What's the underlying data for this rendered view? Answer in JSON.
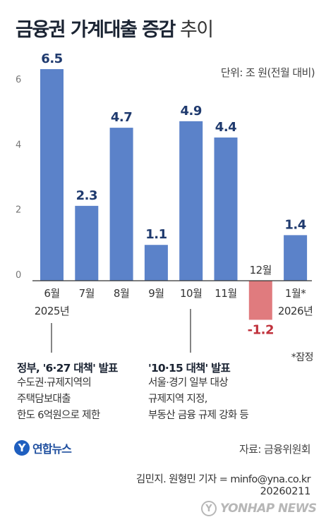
{
  "header": {
    "title_main": "금융권 가계대출 증감",
    "title_light": "추이",
    "unit": "단위: 조 원(전월 대비)"
  },
  "chart_data": {
    "type": "bar",
    "categories": [
      "6월",
      "7월",
      "8월",
      "9월",
      "10월",
      "11월",
      "12월",
      "1월*"
    ],
    "category_sublabels": [
      "2025년",
      "",
      "",
      "",
      "",
      "",
      "",
      "2026년"
    ],
    "values": [
      6.5,
      2.3,
      4.7,
      1.1,
      4.9,
      4.4,
      -1.2,
      1.4
    ],
    "value_labels": [
      "6.5",
      "2.3",
      "4.7",
      "1.1",
      "4.9",
      "4.4",
      "-1.2",
      "1.4"
    ],
    "title": "금융권 가계대출 증감 추이",
    "xlabel": "",
    "ylabel": "",
    "ylim": [
      -1.5,
      6.5
    ],
    "yticks": [
      "0",
      "2",
      "4",
      "6"
    ],
    "colors": {
      "positive": "#5b82c9",
      "negative": "#e07b7e",
      "value_label": "#1f3a6e",
      "negative_label": "#c0323c"
    },
    "grid": false,
    "legend": "none"
  },
  "notes": {
    "provisional": "*잠정"
  },
  "events": [
    {
      "title": "정부, '6·27 대책' 발표",
      "lines": [
        "수도권·규제지역의",
        "주택담보대출",
        "한도 6억원으로 제한"
      ]
    },
    {
      "title": "'10·15 대책' 발표",
      "lines": [
        "서울·경기 일부 대상",
        "규제지역 지정,",
        "부동산 금융 규제 강화 등"
      ]
    }
  ],
  "footer": {
    "logo_text": "연합뉴스",
    "source": "자료: 금융위원회",
    "credit": "김민지. 원형민 기자 = minfo@yna.co.kr",
    "date": "20260211",
    "watermark": "YONHAP NEWS"
  }
}
